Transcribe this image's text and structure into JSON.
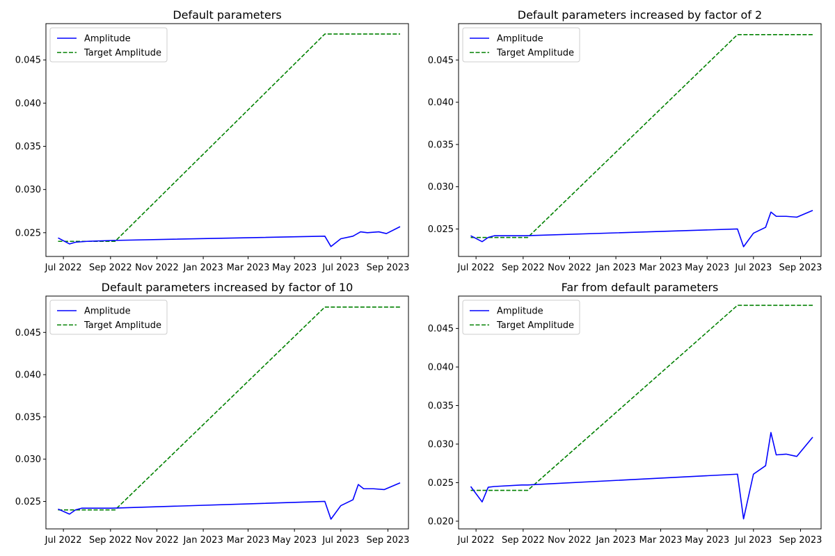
{
  "chart_data": [
    {
      "type": "line",
      "title": "Default parameters",
      "xlabel": "",
      "ylabel": "",
      "x_type": "date",
      "xlim": [
        "2022-06-08",
        "2023-09-28"
      ],
      "ylim": [
        0.02225,
        0.0492
      ],
      "x_ticks": [
        "2022-07-01",
        "2022-09-01",
        "2022-11-01",
        "2023-01-01",
        "2023-03-01",
        "2023-05-01",
        "2023-07-01",
        "2023-09-01"
      ],
      "x_tick_labels": [
        "Jul 2022",
        "Sep 2022",
        "Nov 2022",
        "Jan 2023",
        "Mar 2023",
        "May 2023",
        "Jul 2023",
        "Sep 2023"
      ],
      "y_ticks": [
        0.025,
        0.03,
        0.035,
        0.04,
        0.045
      ],
      "y_tick_labels": [
        "0.025",
        "0.030",
        "0.035",
        "0.040",
        "0.045"
      ],
      "grid": false,
      "legend": "top-left",
      "series": [
        {
          "name": "Amplitude",
          "color": "#0000ff",
          "style": "solid",
          "x": [
            "2022-06-24",
            "2022-07-09",
            "2022-07-17",
            "2022-08-01",
            "2022-09-03",
            "2023-06-10",
            "2023-06-18",
            "2023-07-01",
            "2023-07-17",
            "2023-07-27",
            "2023-08-05",
            "2023-08-20",
            "2023-08-30",
            "2023-09-17"
          ],
          "y": [
            0.0244,
            0.0237,
            0.0239,
            0.024,
            0.0241,
            0.0246,
            0.0234,
            0.0243,
            0.0246,
            0.0251,
            0.025,
            0.0251,
            0.0249,
            0.0257
          ]
        },
        {
          "name": "Target Amplitude",
          "color": "#008000",
          "style": "dashed",
          "x": [
            "2022-06-24",
            "2022-09-07",
            "2023-06-10",
            "2023-09-17"
          ],
          "y": [
            0.024,
            0.024,
            0.048,
            0.048
          ]
        }
      ]
    },
    {
      "type": "line",
      "title": "Default parameters increased by factor of 2",
      "xlabel": "",
      "ylabel": "",
      "x_type": "date",
      "xlim": [
        "2022-06-08",
        "2023-09-28"
      ],
      "ylim": [
        0.02175,
        0.0493
      ],
      "x_ticks": [
        "2022-07-01",
        "2022-09-01",
        "2022-11-01",
        "2023-01-01",
        "2023-03-01",
        "2023-05-01",
        "2023-07-01",
        "2023-09-01"
      ],
      "x_tick_labels": [
        "Jul 2022",
        "Sep 2022",
        "Nov 2022",
        "Jan 2023",
        "Mar 2023",
        "May 2023",
        "Jul 2023",
        "Sep 2023"
      ],
      "y_ticks": [
        0.025,
        0.03,
        0.035,
        0.04,
        0.045
      ],
      "y_tick_labels": [
        "0.025",
        "0.030",
        "0.035",
        "0.040",
        "0.045"
      ],
      "grid": false,
      "legend": "top-left",
      "series": [
        {
          "name": "Amplitude",
          "color": "#0000ff",
          "style": "solid",
          "x": [
            "2022-06-24",
            "2022-07-09",
            "2022-07-17",
            "2022-07-25",
            "2022-09-03",
            "2023-06-10",
            "2023-06-18",
            "2023-07-01",
            "2023-07-17",
            "2023-07-24",
            "2023-07-31",
            "2023-08-13",
            "2023-08-27",
            "2023-09-17"
          ],
          "y": [
            0.0242,
            0.0235,
            0.024,
            0.0242,
            0.0242,
            0.025,
            0.0229,
            0.0245,
            0.0252,
            0.027,
            0.0265,
            0.0265,
            0.0264,
            0.0272
          ]
        },
        {
          "name": "Target Amplitude",
          "color": "#008000",
          "style": "dashed",
          "x": [
            "2022-06-24",
            "2022-09-07",
            "2023-06-10",
            "2023-09-17"
          ],
          "y": [
            0.024,
            0.024,
            0.048,
            0.048
          ]
        }
      ]
    },
    {
      "type": "line",
      "title": "Default parameters increased by factor of 10",
      "xlabel": "",
      "ylabel": "",
      "x_type": "date",
      "xlim": [
        "2022-06-08",
        "2023-09-28"
      ],
      "ylim": [
        0.02175,
        0.0493
      ],
      "x_ticks": [
        "2022-07-01",
        "2022-09-01",
        "2022-11-01",
        "2023-01-01",
        "2023-03-01",
        "2023-05-01",
        "2023-07-01",
        "2023-09-01"
      ],
      "x_tick_labels": [
        "Jul 2022",
        "Sep 2022",
        "Nov 2022",
        "Jan 2023",
        "Mar 2023",
        "May 2023",
        "Jul 2023",
        "Sep 2023"
      ],
      "y_ticks": [
        0.025,
        0.03,
        0.035,
        0.04,
        0.045
      ],
      "y_tick_labels": [
        "0.025",
        "0.030",
        "0.035",
        "0.040",
        "0.045"
      ],
      "grid": false,
      "legend": "top-left",
      "series": [
        {
          "name": "Amplitude",
          "color": "#0000ff",
          "style": "solid",
          "x": [
            "2022-06-24",
            "2022-07-09",
            "2022-07-17",
            "2022-07-25",
            "2022-09-03",
            "2023-06-10",
            "2023-06-18",
            "2023-07-01",
            "2023-07-17",
            "2023-07-24",
            "2023-07-31",
            "2023-08-13",
            "2023-08-27",
            "2023-09-17"
          ],
          "y": [
            0.0241,
            0.0235,
            0.024,
            0.0242,
            0.0242,
            0.025,
            0.0229,
            0.0245,
            0.0252,
            0.027,
            0.0265,
            0.0265,
            0.0264,
            0.0272
          ]
        },
        {
          "name": "Target Amplitude",
          "color": "#008000",
          "style": "dashed",
          "x": [
            "2022-06-24",
            "2022-09-07",
            "2023-06-10",
            "2023-09-17"
          ],
          "y": [
            0.024,
            0.024,
            0.048,
            0.048
          ]
        }
      ]
    },
    {
      "type": "line",
      "title": "Far from default parameters",
      "xlabel": "",
      "ylabel": "",
      "x_type": "date",
      "xlim": [
        "2022-06-08",
        "2023-09-28"
      ],
      "ylim": [
        0.019,
        0.0492
      ],
      "x_ticks": [
        "2022-07-01",
        "2022-09-01",
        "2022-11-01",
        "2023-01-01",
        "2023-03-01",
        "2023-05-01",
        "2023-07-01",
        "2023-09-01"
      ],
      "x_tick_labels": [
        "Jul 2022",
        "Sep 2022",
        "Nov 2022",
        "Jan 2023",
        "Mar 2023",
        "May 2023",
        "Jul 2023",
        "Sep 2023"
      ],
      "y_ticks": [
        0.02,
        0.025,
        0.03,
        0.035,
        0.04,
        0.045
      ],
      "y_tick_labels": [
        "0.020",
        "0.025",
        "0.030",
        "0.035",
        "0.040",
        "0.045"
      ],
      "grid": false,
      "legend": "top-left",
      "series": [
        {
          "name": "Amplitude",
          "color": "#0000ff",
          "style": "solid",
          "x": [
            "2022-06-24",
            "2022-07-09",
            "2022-07-17",
            "2022-07-25",
            "2022-08-30",
            "2022-09-07",
            "2023-06-10",
            "2023-06-18",
            "2023-07-01",
            "2023-07-17",
            "2023-07-24",
            "2023-07-31",
            "2023-08-13",
            "2023-08-27",
            "2023-09-17"
          ],
          "y": [
            0.0245,
            0.0225,
            0.0244,
            0.0245,
            0.0247,
            0.0247,
            0.0261,
            0.0203,
            0.0261,
            0.0272,
            0.0315,
            0.0286,
            0.0287,
            0.0284,
            0.0309
          ]
        },
        {
          "name": "Target Amplitude",
          "color": "#008000",
          "style": "dashed",
          "x": [
            "2022-06-24",
            "2022-09-07",
            "2023-06-10",
            "2023-09-17"
          ],
          "y": [
            0.024,
            0.024,
            0.048,
            0.048
          ]
        }
      ]
    }
  ]
}
